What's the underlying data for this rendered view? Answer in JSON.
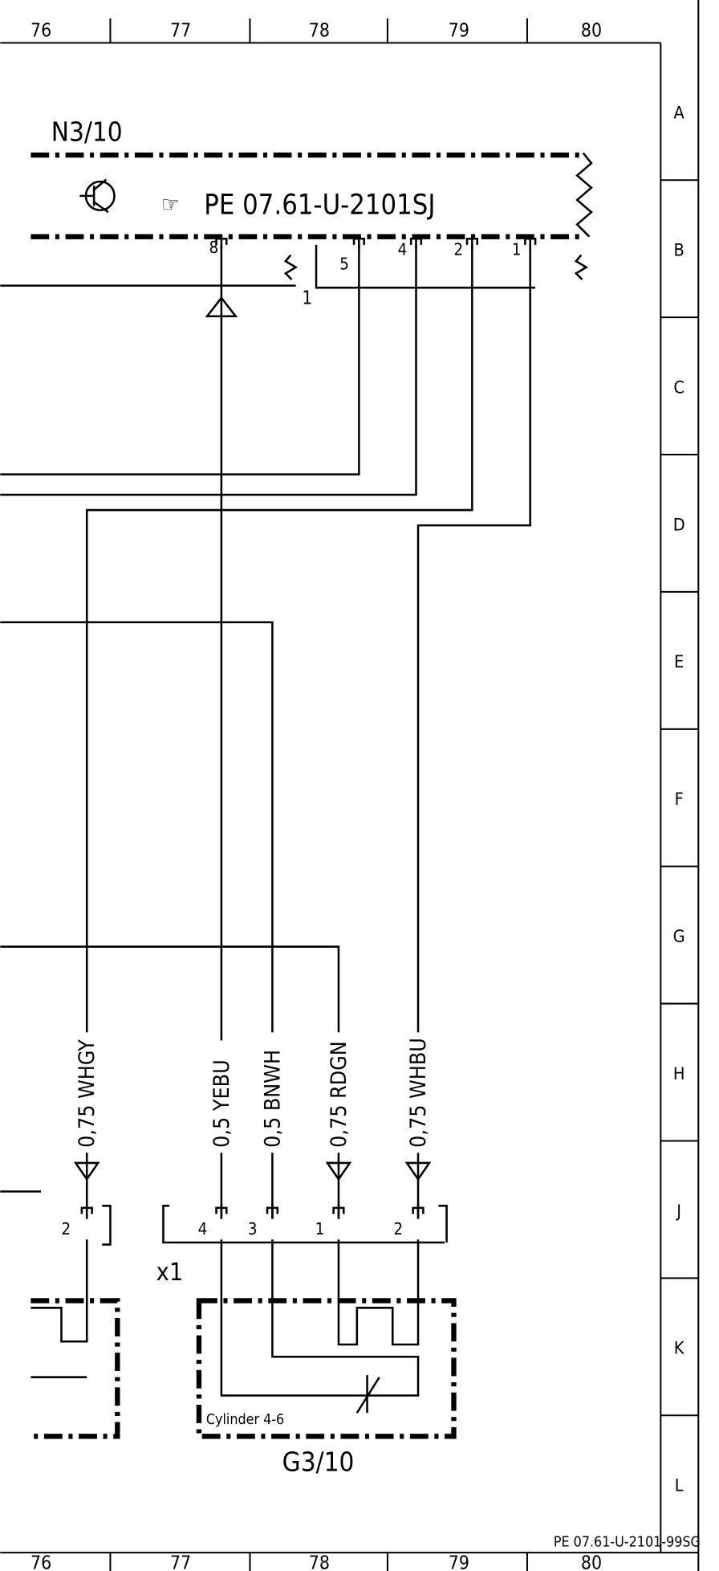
{
  "frame": {
    "columns_top": [
      "76",
      "77",
      "78",
      "79",
      "80"
    ],
    "columns_bottom": [
      "76",
      "77",
      "78",
      "79",
      "80"
    ],
    "rows": [
      "A",
      "B",
      "C",
      "D",
      "E",
      "F",
      "G",
      "H",
      "J",
      "K",
      "L"
    ]
  },
  "component_n3": {
    "label": "N3/10",
    "reference": "PE 07.61-U-2101SJ"
  },
  "pins": [
    "8",
    "5",
    "4",
    "2",
    "1"
  ],
  "bridge_label": "1",
  "wires": [
    "0,75 WHGY",
    "0,5 YEBU",
    "0,5 BNWH",
    "0,75 RDGN",
    "0,75 WHBU"
  ],
  "left_connector_pin": "2",
  "connector_x1": {
    "label": "x1",
    "pins": [
      "4",
      "3",
      "1",
      "2"
    ]
  },
  "component_g3": {
    "label": "G3/10",
    "note": "Cylinder 4-6"
  },
  "footer_ref": "PE 07.61-U-2101-99SG"
}
